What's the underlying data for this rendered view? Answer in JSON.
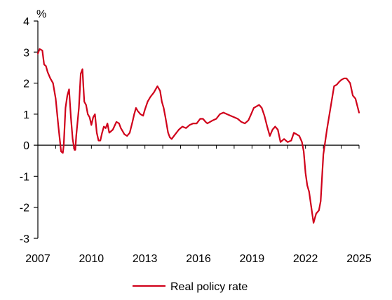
{
  "chart_data": {
    "type": "line",
    "title": "",
    "xlabel": "",
    "ylabel": "",
    "unit": "%",
    "xlim": [
      2007,
      2025
    ],
    "ylim": [
      -3,
      4
    ],
    "x_ticks": [
      2007,
      2010,
      2013,
      2016,
      2019,
      2022,
      2025
    ],
    "x_tick_labels": [
      "2007",
      "2010",
      "2013",
      "2016",
      "2019",
      "2022",
      "2025"
    ],
    "y_ticks": [
      4,
      3,
      2,
      1,
      0,
      -1,
      -2,
      -3
    ],
    "y_tick_labels": [
      "4",
      "3",
      "2",
      "1",
      "0",
      "-1",
      "-2",
      "-3"
    ],
    "grid": false,
    "legend_position": "bottom",
    "series": [
      {
        "name": "Real policy rate",
        "color": "#d0021b",
        "x": [
          2007.0,
          2007.1,
          2007.25,
          2007.35,
          2007.45,
          2007.55,
          2007.7,
          2007.85,
          2008.0,
          2008.15,
          2008.3,
          2008.4,
          2008.45,
          2008.55,
          2008.65,
          2008.75,
          2008.85,
          2008.95,
          2009.05,
          2009.1,
          2009.15,
          2009.3,
          2009.4,
          2009.5,
          2009.55,
          2009.6,
          2009.7,
          2009.8,
          2009.9,
          2010.0,
          2010.1,
          2010.2,
          2010.3,
          2010.4,
          2010.5,
          2010.6,
          2010.7,
          2010.8,
          2010.9,
          2011.0,
          2011.2,
          2011.4,
          2011.55,
          2011.65,
          2011.75,
          2011.85,
          2012.0,
          2012.15,
          2012.3,
          2012.4,
          2012.5,
          2012.6,
          2012.75,
          2012.9,
          2013.0,
          2013.15,
          2013.3,
          2013.5,
          2013.7,
          2013.85,
          2013.95,
          2014.05,
          2014.15,
          2014.3,
          2014.4,
          2014.5,
          2014.7,
          2014.9,
          2015.1,
          2015.3,
          2015.5,
          2015.7,
          2015.9,
          2016.1,
          2016.25,
          2016.4,
          2016.5,
          2016.65,
          2016.8,
          2017.0,
          2017.2,
          2017.4,
          2017.6,
          2017.8,
          2018.0,
          2018.2,
          2018.4,
          2018.6,
          2018.8,
          2018.95,
          2019.1,
          2019.25,
          2019.4,
          2019.55,
          2019.7,
          2019.85,
          2020.0,
          2020.15,
          2020.3,
          2020.45,
          2020.6,
          2020.8,
          2021.0,
          2021.2,
          2021.35,
          2021.5,
          2021.65,
          2021.8,
          2021.9,
          2022.0,
          2022.1,
          2022.2,
          2022.3,
          2022.45,
          2022.6,
          2022.75,
          2022.85,
          2023.0,
          2023.2,
          2023.4,
          2023.6,
          2023.75,
          2023.9,
          2024.0,
          2024.15,
          2024.3,
          2024.5,
          2024.65,
          2024.8,
          2025.0
        ],
        "values": [
          2.95,
          3.1,
          3.05,
          2.6,
          2.55,
          2.35,
          2.15,
          2.0,
          1.5,
          0.6,
          -0.2,
          -0.25,
          0.0,
          1.2,
          1.6,
          1.8,
          0.9,
          0.2,
          -0.15,
          -0.15,
          0.3,
          1.2,
          2.3,
          2.45,
          1.9,
          1.4,
          1.3,
          1.0,
          0.9,
          0.65,
          0.9,
          1.0,
          0.4,
          0.15,
          0.15,
          0.4,
          0.6,
          0.55,
          0.7,
          0.4,
          0.5,
          0.75,
          0.7,
          0.55,
          0.45,
          0.35,
          0.3,
          0.4,
          0.75,
          1.0,
          1.2,
          1.1,
          1.0,
          0.95,
          1.15,
          1.4,
          1.55,
          1.7,
          1.9,
          1.75,
          1.4,
          1.2,
          0.9,
          0.4,
          0.25,
          0.2,
          0.35,
          0.5,
          0.6,
          0.55,
          0.65,
          0.7,
          0.7,
          0.85,
          0.85,
          0.75,
          0.7,
          0.75,
          0.8,
          0.85,
          1.0,
          1.05,
          1.0,
          0.95,
          0.9,
          0.85,
          0.75,
          0.7,
          0.8,
          1.0,
          1.2,
          1.25,
          1.3,
          1.2,
          0.95,
          0.6,
          0.3,
          0.5,
          0.6,
          0.5,
          0.1,
          0.2,
          0.1,
          0.15,
          0.4,
          0.35,
          0.3,
          0.1,
          -0.2,
          -0.9,
          -1.3,
          -1.5,
          -1.9,
          -2.5,
          -2.2,
          -2.1,
          -1.8,
          -0.3,
          0.5,
          1.2,
          1.9,
          1.95,
          2.05,
          2.1,
          2.15,
          2.15,
          2.0,
          1.6,
          1.5,
          1.05
        ]
      }
    ]
  }
}
